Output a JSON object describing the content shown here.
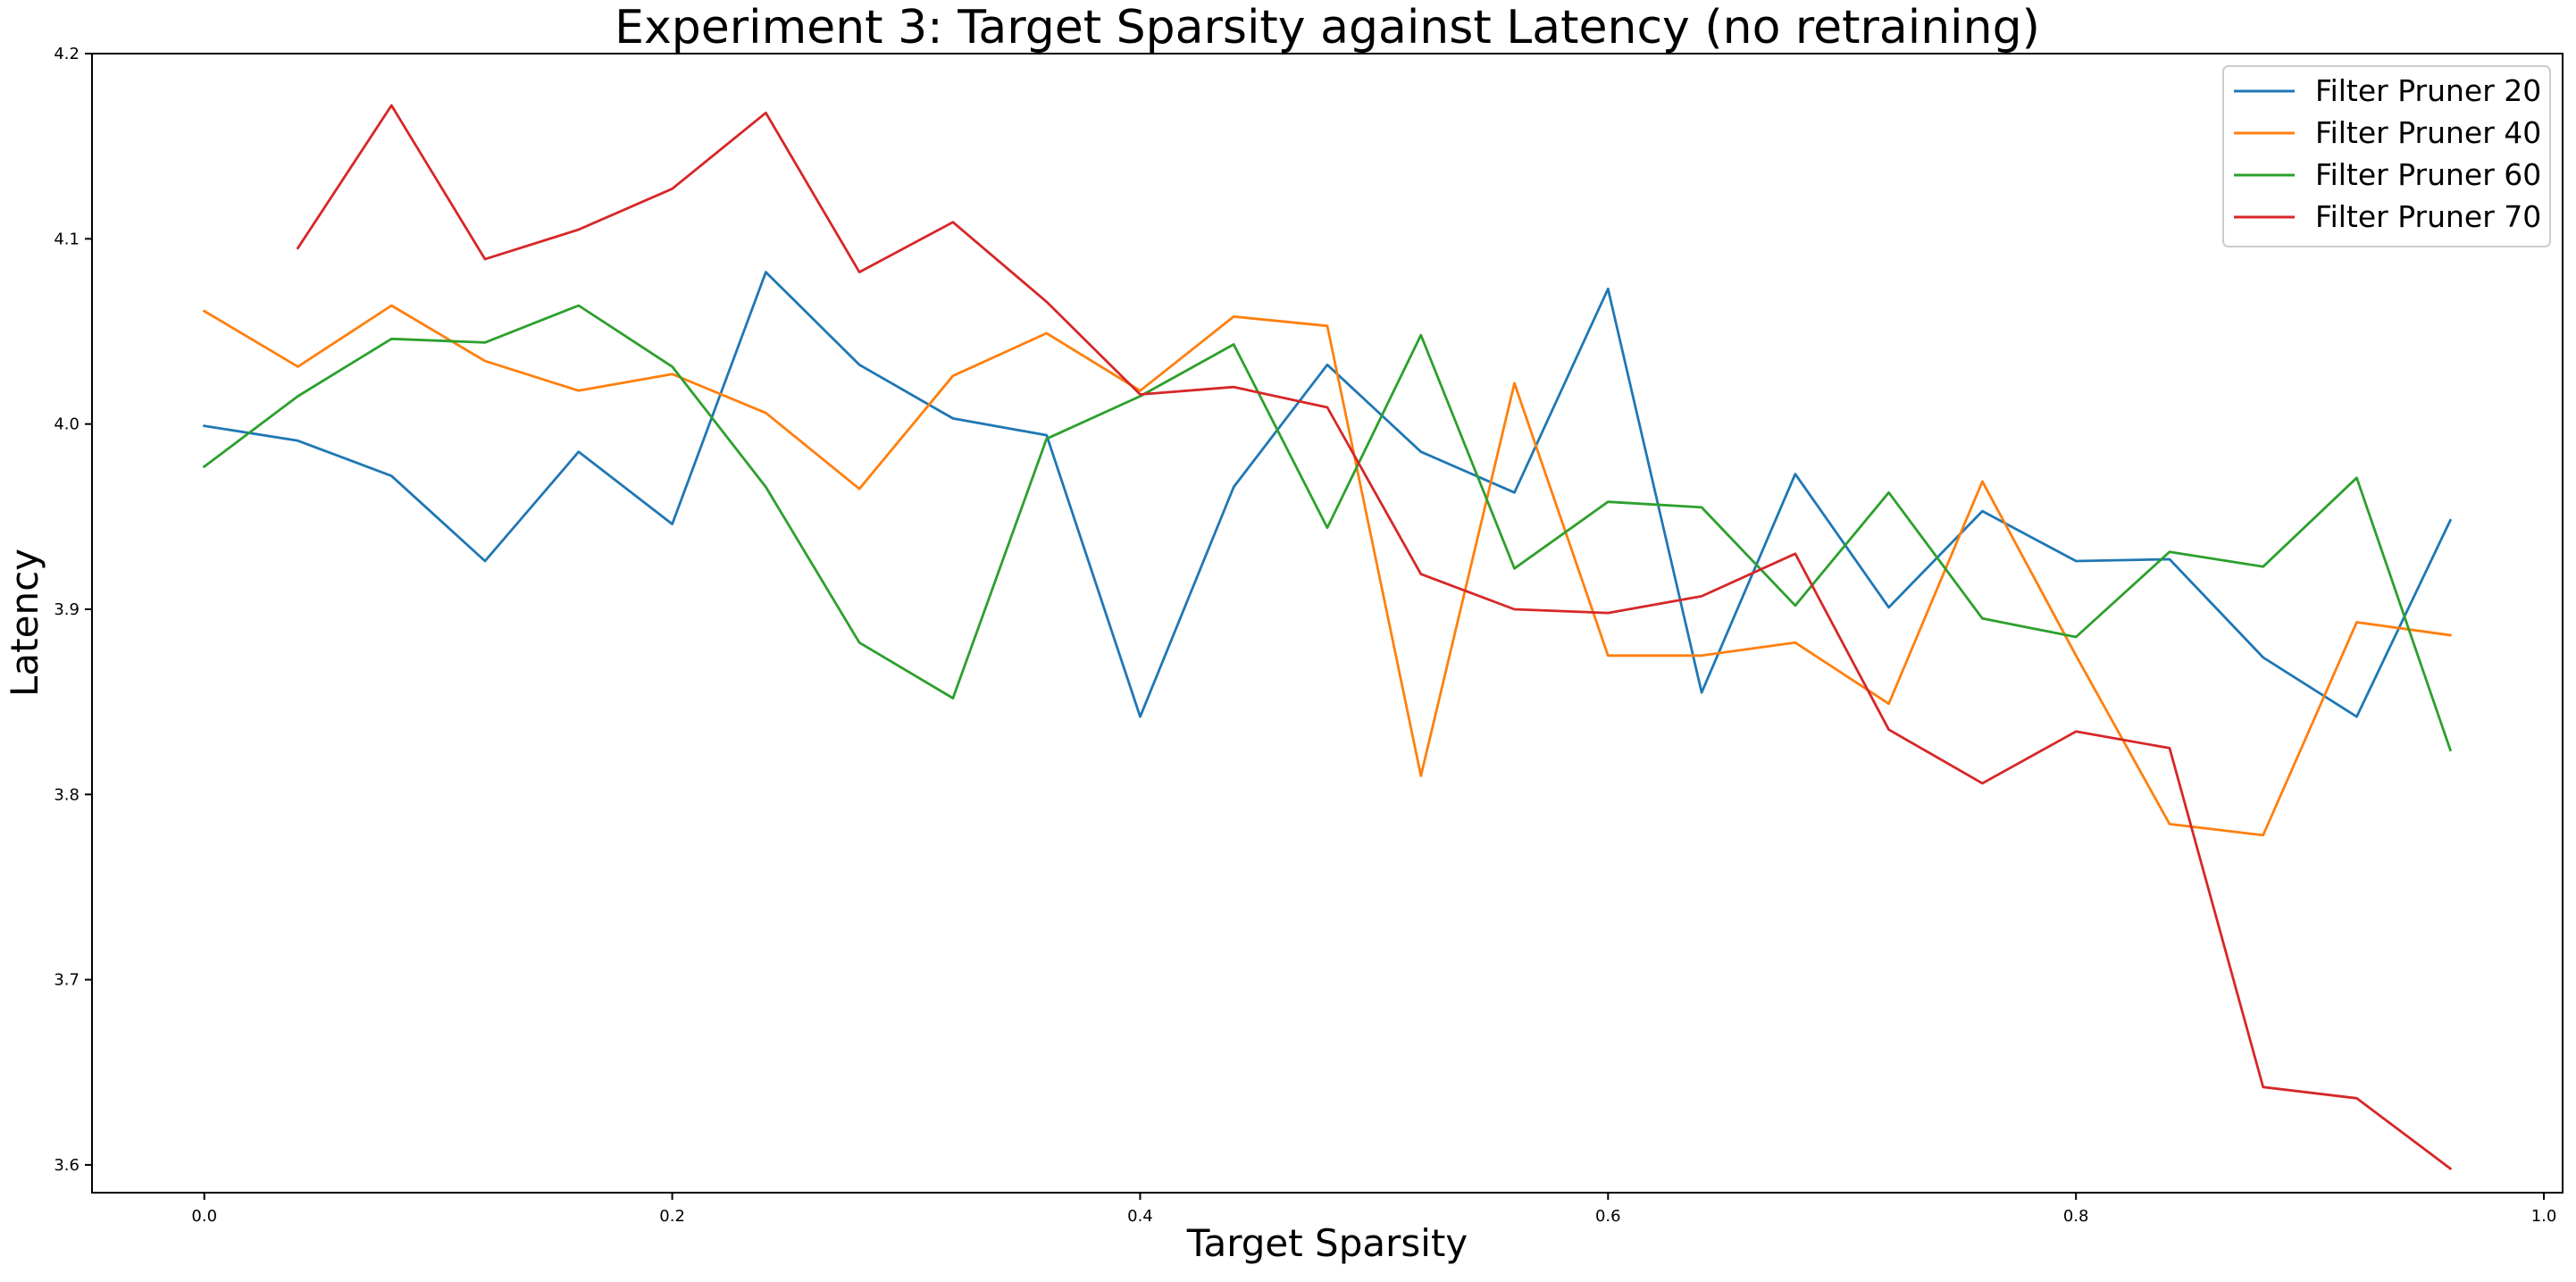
{
  "chart_data": {
    "type": "line",
    "title": "Experiment 3: Target Sparsity against Latency (no retraining)",
    "xlabel": "Target Sparsity",
    "ylabel": "Latency",
    "xlim": [
      -0.048,
      1.008
    ],
    "ylim": [
      3.585,
      4.2
    ],
    "xticks": [
      0.0,
      0.2,
      0.4,
      0.6,
      0.8,
      1.0
    ],
    "xtick_labels": [
      "0.0",
      "0.2",
      "0.4",
      "0.6",
      "0.8",
      "1.0"
    ],
    "yticks": [
      3.6,
      3.7,
      3.8,
      3.9,
      4.0,
      4.1,
      4.2
    ],
    "ytick_labels": [
      "3.6",
      "3.7",
      "3.8",
      "3.9",
      "4.0",
      "4.1",
      "4.2"
    ],
    "grid": false,
    "legend_position": "top-right",
    "series": [
      {
        "name": "Filter Pruner 20",
        "color": "#1f77b4",
        "x": [
          0.0,
          0.04,
          0.08,
          0.12,
          0.16,
          0.2,
          0.24,
          0.28,
          0.32,
          0.36,
          0.4,
          0.44,
          0.48,
          0.52,
          0.56,
          0.6,
          0.64,
          0.68,
          0.72,
          0.76,
          0.8,
          0.84,
          0.88,
          0.92,
          0.96
        ],
        "y": [
          3.999,
          3.991,
          3.972,
          3.926,
          3.985,
          3.946,
          4.082,
          4.032,
          4.003,
          3.994,
          3.842,
          3.966,
          4.032,
          3.985,
          3.963,
          4.073,
          3.855,
          3.973,
          3.901,
          3.953,
          3.926,
          3.927,
          3.874,
          3.842,
          3.948
        ]
      },
      {
        "name": "Filter Pruner 40",
        "color": "#ff7f0e",
        "x": [
          0.0,
          0.04,
          0.08,
          0.12,
          0.16,
          0.2,
          0.24,
          0.28,
          0.32,
          0.36,
          0.4,
          0.44,
          0.48,
          0.52,
          0.56,
          0.6,
          0.64,
          0.68,
          0.72,
          0.76,
          0.8,
          0.84,
          0.88,
          0.92,
          0.96
        ],
        "y": [
          4.061,
          4.031,
          4.064,
          4.034,
          4.018,
          4.027,
          4.006,
          3.965,
          4.026,
          4.049,
          4.018,
          4.058,
          4.053,
          3.81,
          4.022,
          3.875,
          3.875,
          3.882,
          3.849,
          3.969,
          3.875,
          3.784,
          3.778,
          3.893,
          3.886
        ]
      },
      {
        "name": "Filter Pruner 60",
        "color": "#2ca02c",
        "x": [
          0.0,
          0.04,
          0.08,
          0.12,
          0.16,
          0.2,
          0.24,
          0.28,
          0.32,
          0.36,
          0.4,
          0.44,
          0.48,
          0.52,
          0.56,
          0.6,
          0.64,
          0.68,
          0.72,
          0.76,
          0.8,
          0.84,
          0.88,
          0.92,
          0.96
        ],
        "y": [
          3.977,
          4.015,
          4.046,
          4.044,
          4.064,
          4.031,
          3.966,
          3.882,
          3.852,
          3.992,
          4.015,
          4.043,
          3.944,
          4.048,
          3.922,
          3.958,
          3.955,
          3.902,
          3.963,
          3.895,
          3.885,
          3.931,
          3.923,
          3.971,
          3.824
        ]
      },
      {
        "name": "Filter Pruner 70",
        "color": "#d62728",
        "x": [
          0.04,
          0.08,
          0.12,
          0.16,
          0.2,
          0.24,
          0.28,
          0.32,
          0.36,
          0.4,
          0.44,
          0.48,
          0.52,
          0.56,
          0.6,
          0.64,
          0.68,
          0.72,
          0.76,
          0.8,
          0.84,
          0.88,
          0.92,
          0.96
        ],
        "y": [
          4.095,
          4.172,
          4.089,
          4.105,
          4.127,
          4.168,
          4.082,
          4.109,
          4.066,
          4.016,
          4.02,
          4.009,
          3.919,
          3.9,
          3.898,
          3.907,
          3.93,
          3.835,
          3.806,
          3.834,
          3.825,
          3.642,
          3.636,
          3.598
        ]
      }
    ]
  }
}
